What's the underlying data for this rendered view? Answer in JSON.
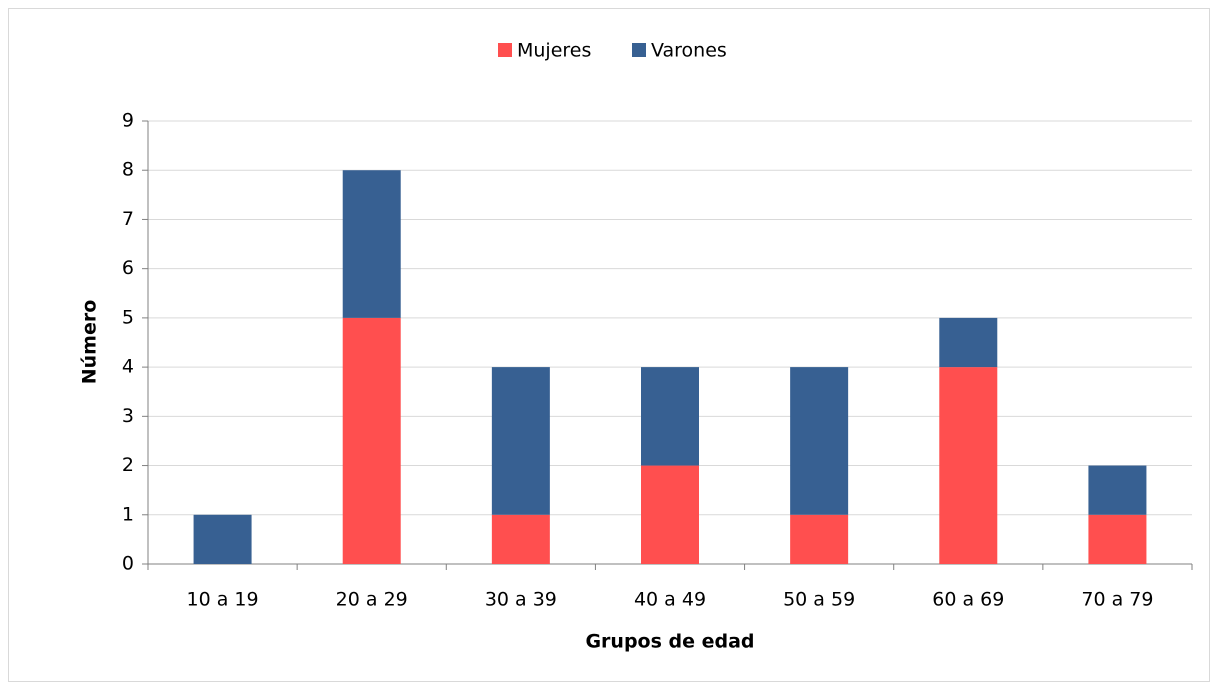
{
  "chart_data": {
    "type": "stacked-bar",
    "xlabel": "Grupos de edad",
    "ylabel": "Número",
    "categories": [
      "10 a 19",
      "20 a 29",
      "30 a 39",
      "40 a 49",
      "50 a 59",
      "60 a 69",
      "70 a 79"
    ],
    "series": [
      {
        "name": "Mujeres",
        "color": "#ff4f4f",
        "values": [
          0,
          5,
          1,
          2,
          1,
          4,
          1
        ]
      },
      {
        "name": "Varones",
        "color": "#376092",
        "values": [
          1,
          3,
          3,
          2,
          3,
          1,
          1
        ]
      }
    ],
    "ylim": [
      0,
      9
    ],
    "yticks": [
      0,
      1,
      2,
      3,
      4,
      5,
      6,
      7,
      8,
      9
    ],
    "grid": true,
    "legend": "top"
  }
}
